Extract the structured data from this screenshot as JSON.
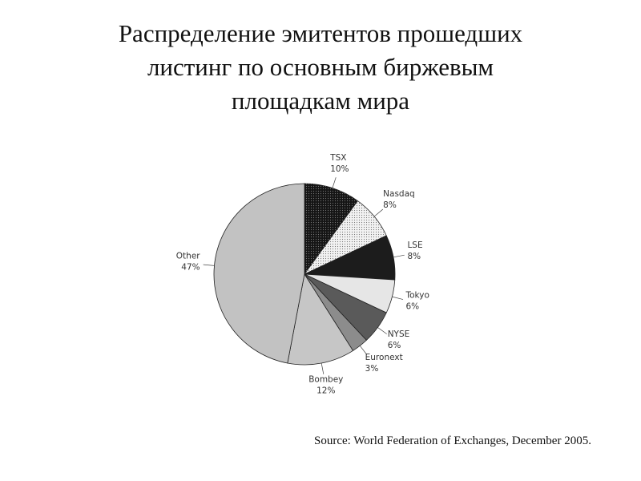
{
  "chart_data": {
    "type": "pie",
    "title_lines": [
      "Распределение эмитентов прошедших",
      "листинг по основным биржевым",
      "площадкам мира"
    ],
    "categories": [
      "TSX",
      "Nasdaq",
      "LSE",
      "Tokyo",
      "NYSE",
      "Euronext",
      "Bombey",
      "Other"
    ],
    "values": [
      10,
      8,
      8,
      6,
      6,
      3,
      12,
      47
    ],
    "value_labels": [
      "10%",
      "8%",
      "8%",
      "6%",
      "6%",
      "3%",
      "12%",
      "47%"
    ],
    "colors": [
      "#151515",
      "#f2f2f2",
      "#1c1c1c",
      "#e6e6e6",
      "#5a5a5a",
      "#8c8c8c",
      "#c6c6c6",
      "#c2c2c2"
    ],
    "source": "Source: World Federation of Exchanges, December 2005."
  }
}
